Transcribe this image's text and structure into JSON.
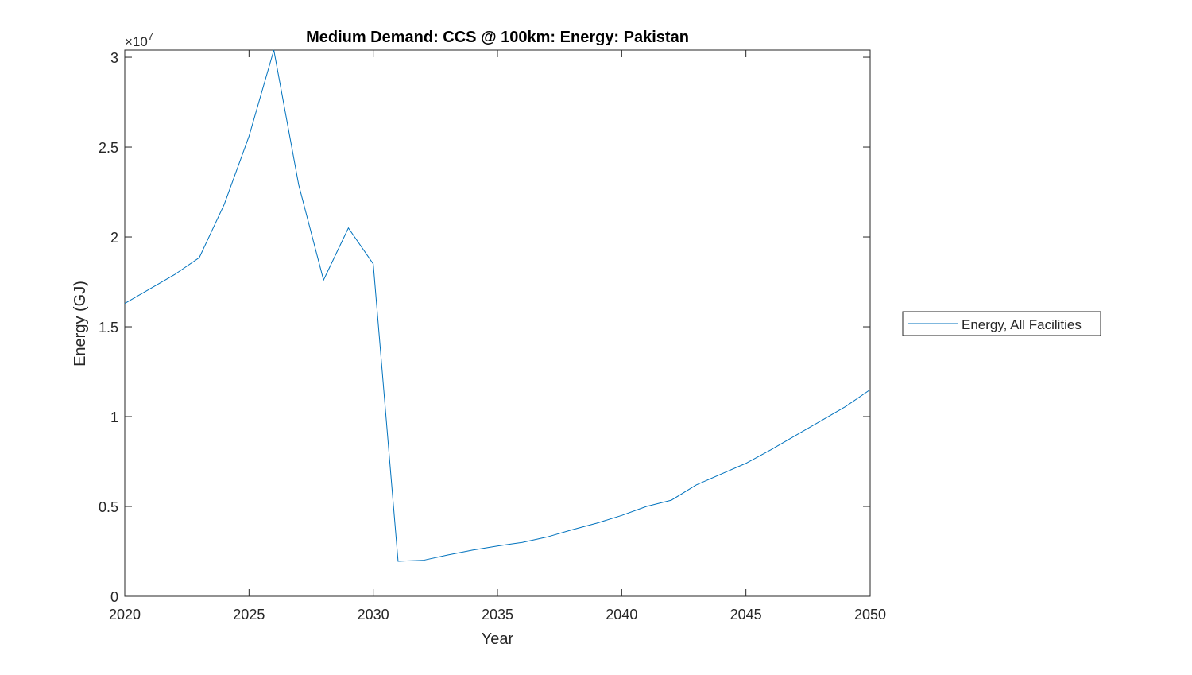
{
  "chart_data": {
    "type": "line",
    "title": "Medium Demand: CCS @ 100km: Energy: Pakistan",
    "xlabel": "Year",
    "ylabel": "Energy (GJ)",
    "y_exponent_label": "×10",
    "y_exponent": "7",
    "xlim": [
      2020,
      2050
    ],
    "ylim": [
      0,
      3.04
    ],
    "xticks": [
      2020,
      2025,
      2030,
      2035,
      2040,
      2045,
      2050
    ],
    "yticks": [
      0,
      0.5,
      1,
      1.5,
      2,
      2.5,
      3
    ],
    "ytick_labels": [
      "0",
      "0.5",
      "1",
      "1.5",
      "2",
      "2.5",
      "3"
    ],
    "grid": false,
    "legend_placement": "outside-right",
    "series": [
      {
        "name": "Energy, All Facilities",
        "color": "#0072BD",
        "x": [
          2020,
          2021,
          2022,
          2023,
          2024,
          2025,
          2026,
          2027,
          2028,
          2029,
          2030,
          2031,
          2032,
          2033,
          2034,
          2035,
          2036,
          2037,
          2038,
          2039,
          2040,
          2041,
          2042,
          2043,
          2044,
          2045,
          2046,
          2047,
          2048,
          2049,
          2050
        ],
        "y": [
          1.63,
          1.71,
          1.79,
          1.885,
          2.18,
          2.56,
          3.04,
          2.29,
          1.76,
          2.05,
          1.85,
          0.195,
          0.2,
          0.23,
          0.257,
          0.28,
          0.3,
          0.33,
          0.37,
          0.407,
          0.45,
          0.5,
          0.535,
          0.62,
          0.68,
          0.74,
          0.815,
          0.895,
          0.975,
          1.055,
          1.15
        ]
      }
    ]
  }
}
